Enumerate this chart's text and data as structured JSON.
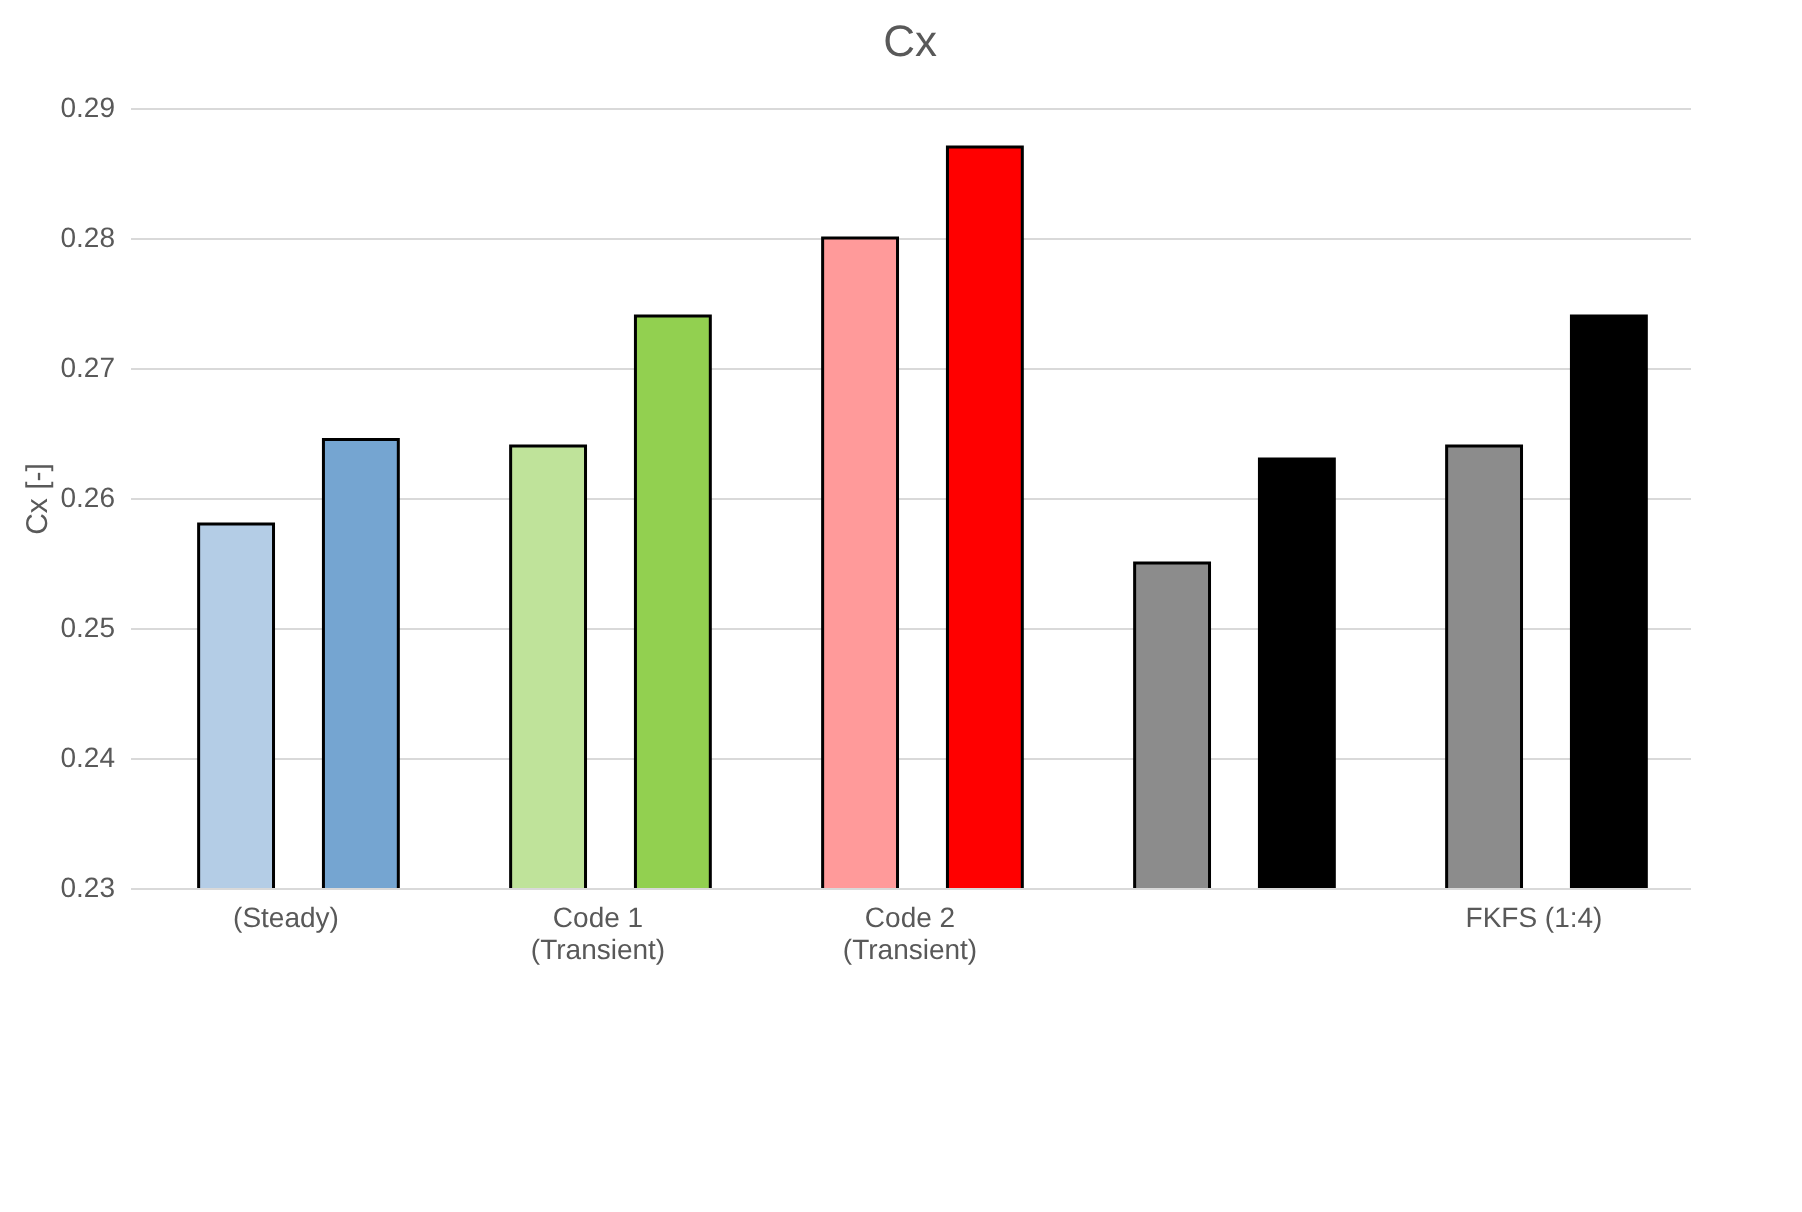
{
  "chart_data": {
    "type": "bar",
    "title": "Cx",
    "ylabel": "Cx [-]",
    "categories": [
      "(Steady)",
      "Code 1\n(Transient)",
      "Code 2\n(Transient)",
      null,
      "FKFS (1:4)"
    ],
    "series": [
      {
        "colors": [
          "#b4cde6",
          "#bfe39a",
          "#ff9a9a",
          "#8c8c8c",
          "#8c8c8c"
        ],
        "values": [
          0.258,
          0.264,
          0.28,
          0.255,
          0.264
        ]
      },
      {
        "colors": [
          "#75a5d1",
          "#92d050",
          "#ff0000",
          "#000000",
          "#000000"
        ],
        "values": [
          0.2645,
          0.274,
          0.287,
          0.263,
          0.274
        ]
      }
    ],
    "ylim": [
      0.23,
      0.29
    ],
    "yticks": [
      0.23,
      0.24,
      0.25,
      0.26,
      0.27,
      0.28,
      0.29
    ],
    "grid": "y"
  }
}
